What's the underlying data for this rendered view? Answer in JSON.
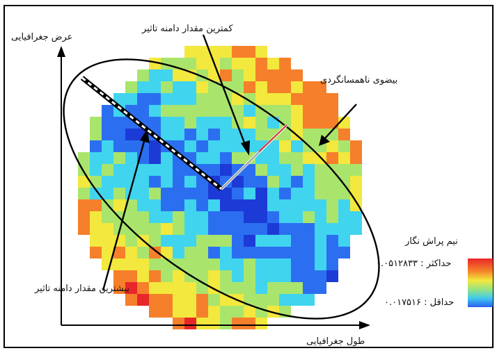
{
  "labels": {
    "y_axis": "عرض جغرافیایی",
    "x_axis": "طول جغرافیایی",
    "min_range": "کمترین مقدار دامنه تاثیر",
    "max_range": "بیشترین مقدار دامنه تاثیر",
    "ellipse": "بیضوی ناهمسانگردی",
    "legend_title": "نیم پراش نگار",
    "legend_max": "حداکثر : ۰.۰۵۱۲۸۳۳",
    "legend_min": "حداقل : ۰.۰۱۷۵۱۶"
  },
  "colors": {
    "red": "#e8262a",
    "orange": "#f57f2a",
    "yellow": "#f3e83d",
    "light_green": "#a9e56c",
    "cyan": "#40d4ef",
    "blue": "#2b6ff0",
    "deep_blue": "#1c3bd6"
  }
}
